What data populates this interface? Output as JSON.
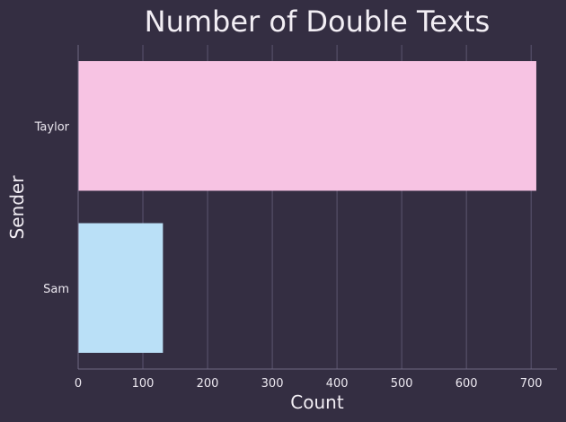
{
  "chart_data": {
    "type": "bar",
    "orientation": "horizontal",
    "title": "Number of Double Texts",
    "xlabel": "Count",
    "ylabel": "Sender",
    "categories": [
      "Taylor",
      "Sam"
    ],
    "values": [
      708,
      131
    ],
    "bar_colors": [
      "#f7c3e3",
      "#bae0f7"
    ],
    "xlim": [
      0,
      740
    ],
    "xticks": [
      0,
      100,
      200,
      300,
      400,
      500,
      600,
      700
    ],
    "grid": "vertical",
    "legend": "none"
  },
  "colors": {
    "background": "#342e42",
    "grid": "#5c5670",
    "text": "#f2eef4"
  }
}
